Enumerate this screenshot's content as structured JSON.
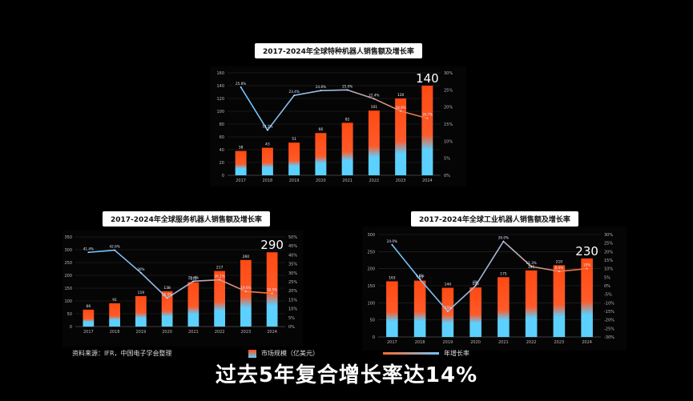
{
  "chart_data": [
    {
      "type": "bar",
      "title": "2017-2024年全球特种机器人销售额及增长率",
      "categories": [
        "2017",
        "2018",
        "2019",
        "2020",
        "2021",
        "2022",
        "2023",
        "2024"
      ],
      "series": [
        {
          "name": "市场规模（亿美元）",
          "type": "bar",
          "values": [
            38,
            43,
            51,
            66,
            82,
            101,
            120,
            140
          ]
        },
        {
          "name": "年增长率",
          "type": "line",
          "values": [
            25.8,
            13.2,
            23.4,
            24.8,
            25.0,
            22.4,
            18.8,
            16.7
          ],
          "labels": [
            "25.8%",
            "13.2%",
            "23.4%",
            "24.8%",
            "25.0%",
            "22.4%",
            "18.8%",
            "16.7%"
          ]
        }
      ],
      "bar_labels": [
        "38",
        "43",
        "51",
        "66",
        "82",
        "101",
        "120",
        "140"
      ],
      "ylim": [
        0,
        160
      ],
      "y2lim": [
        0,
        30
      ],
      "yticks": [
        "0",
        "20",
        "40",
        "60",
        "80",
        "100",
        "120",
        "140",
        "160"
      ],
      "y2ticks": [
        "0%",
        "5%",
        "10%",
        "15%",
        "20%",
        "25%",
        "30%"
      ],
      "highlight_last": "140"
    },
    {
      "type": "bar",
      "title": "2017-2024年全球服务机器人销售额及增长率",
      "categories": [
        "2017",
        "2018",
        "2019",
        "2020",
        "2021",
        "2022",
        "2023",
        "2024"
      ],
      "series": [
        {
          "name": "市场规模（亿美元）",
          "type": "bar",
          "values": [
            66,
            91,
            119,
            138,
            173,
            217,
            260,
            290
          ]
        },
        {
          "name": "年增长率",
          "type": "line",
          "values": [
            41.4,
            42.6,
            30.0,
            15.9,
            25.3,
            26.1,
            19.6,
            18.5
          ],
          "labels": [
            "41.4%",
            "42.6%",
            "30%",
            "15.9%",
            "25.3%",
            "26.1%",
            "19.6%",
            "18.5%"
          ]
        }
      ],
      "bar_labels": [
        "66",
        "91",
        "119",
        "138",
        "173",
        "217",
        "260",
        "290"
      ],
      "ylim": [
        0,
        350
      ],
      "y2lim": [
        0,
        50
      ],
      "yticks": [
        "0",
        "50",
        "100",
        "150",
        "200",
        "250",
        "300",
        "350"
      ],
      "y2ticks": [
        "0%",
        "5%",
        "10%",
        "15%",
        "20%",
        "25%",
        "30%",
        "35%",
        "40%",
        "45%",
        "50%"
      ],
      "highlight_last": "290"
    },
    {
      "type": "bar",
      "title": "2017-2024年全球工业机器人销售额及增长率",
      "categories": [
        "2017",
        "2018",
        "2019",
        "2020",
        "2021",
        "2022",
        "2023",
        "2024"
      ],
      "series": [
        {
          "name": "市场规模（亿美元）",
          "type": "bar",
          "values": [
            163,
            165,
            144,
            145,
            175,
            195,
            210,
            230
          ]
        },
        {
          "name": "年增长率",
          "type": "line",
          "values": [
            24.0,
            3.8,
            -15.0,
            0.0,
            26.0,
            11.3,
            8.4,
            10.0
          ],
          "labels": [
            "24.0%",
            "3.8%",
            "-15%",
            "0%",
            "26.0%",
            "11.3%",
            "8.4%",
            "10%"
          ]
        }
      ],
      "bar_labels": [
        "163",
        "165",
        "144",
        "145",
        "175",
        "195",
        "210",
        "230"
      ],
      "ylim": [
        0,
        300
      ],
      "y2lim": [
        -30,
        30
      ],
      "yticks": [
        "0",
        "50",
        "100",
        "150",
        "200",
        "250",
        "300"
      ],
      "y2ticks": [
        "-30%",
        "-25%",
        "-20%",
        "-15%",
        "-10%",
        "-5%",
        "0%",
        "5%",
        "10%",
        "15%",
        "20%",
        "25%",
        "30%"
      ],
      "highlight_last": "230"
    }
  ],
  "source": "资料来源：IFR，中国电子学会整理",
  "legend": {
    "bar": "市场规模（亿美元）",
    "line": "年增长率"
  },
  "subtitle": "过去5年复合增长率达14%",
  "colors": {
    "bar_top": "#ff4a12",
    "bar_bottom": "#5cd0ff",
    "line_start": "#6fc4ff",
    "line_end": "#ff6a2a"
  }
}
